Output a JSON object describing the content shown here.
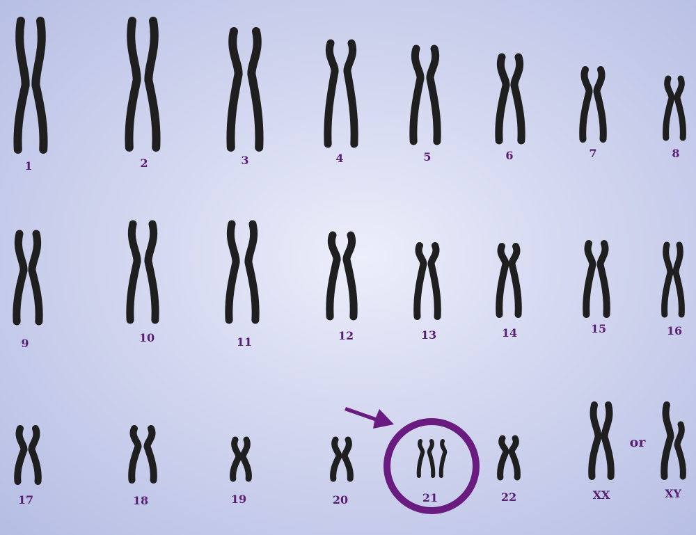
{
  "colors": {
    "chromosome": "#1f1f1f",
    "accent": "#6a1b80",
    "label": "#5a1d74"
  },
  "chromosomes": [
    {
      "label": "1"
    },
    {
      "label": "2"
    },
    {
      "label": "3"
    },
    {
      "label": "4"
    },
    {
      "label": "5"
    },
    {
      "label": "6"
    },
    {
      "label": "7"
    },
    {
      "label": "8"
    },
    {
      "label": "9"
    },
    {
      "label": "10"
    },
    {
      "label": "11"
    },
    {
      "label": "12"
    },
    {
      "label": "13"
    },
    {
      "label": "14"
    },
    {
      "label": "15"
    },
    {
      "label": "16"
    },
    {
      "label": "17"
    },
    {
      "label": "18"
    },
    {
      "label": "19"
    },
    {
      "label": "20"
    },
    {
      "label": "21",
      "copies": 3,
      "highlighted": true
    },
    {
      "label": "22"
    }
  ],
  "sex_chromosomes": [
    {
      "label": "XX"
    },
    {
      "label": "XY"
    }
  ],
  "connector_text": "or"
}
